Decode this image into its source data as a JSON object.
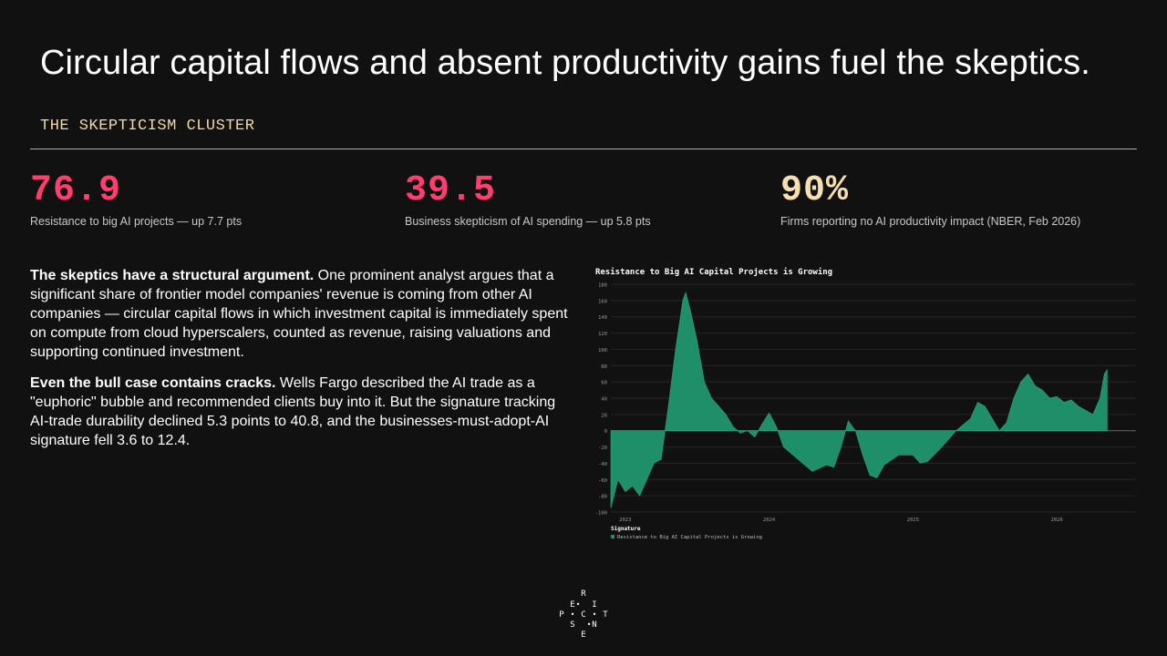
{
  "title": "Circular capital flows and absent productivity gains fuel the skeptics.",
  "section_label": "THE SKEPTICISM CLUSTER",
  "stats": [
    {
      "value": "76.9",
      "desc": "Resistance to big AI projects — up 7.7 pts",
      "color": "#ff3d6e"
    },
    {
      "value": "39.5",
      "desc": "Business skepticism of AI spending — up 5.8 pts",
      "color": "#ff3d6e"
    },
    {
      "value": "90%",
      "desc": "Firms reporting no AI productivity impact (NBER, Feb 2026)",
      "color": "#f5deb0"
    }
  ],
  "paragraphs": [
    {
      "lead": "The skeptics have a structural argument.",
      "text": " One prominent analyst argues that a significant share of frontier model companies' revenue is coming from other AI companies — circular capital flows in which investment capital is immediately spent on compute from cloud hyperscalers, counted as revenue, raising valuations and supporting continued investment."
    },
    {
      "lead": "Even the bull case contains cracks.",
      "text": " Wells Fargo described the AI trade as a \"euphoric\" bubble and recommended clients buy into it. But the signature tracking AI-trade durability declined 5.3 points to 40.8, and the businesses-must-adopt-AI signature fell 3.6 to 12.4."
    }
  ],
  "chart_data": {
    "type": "area",
    "title": "Resistance to Big AI Capital Projects is Growing",
    "xlabel": "",
    "ylabel": "",
    "x_range": [
      2022.9,
      2026.55
    ],
    "ylim": [
      -100,
      180
    ],
    "y_ticks": [
      -100,
      -80,
      -60,
      -40,
      -20,
      0,
      20,
      40,
      60,
      80,
      100,
      120,
      140,
      160,
      180
    ],
    "x_ticks": [
      {
        "value": 2023,
        "label": "2023"
      },
      {
        "value": 2024,
        "label": "2024"
      },
      {
        "value": 2025,
        "label": "2025"
      },
      {
        "value": 2026,
        "label": "2026"
      }
    ],
    "grid": true,
    "legend": {
      "title": "Signature",
      "placement": "bottom-left"
    },
    "series": [
      {
        "name": "Resistance to Big AI Capital Projects is Growing",
        "color": "#1f8f6a",
        "points": [
          [
            2022.9,
            -95
          ],
          [
            2022.95,
            -60
          ],
          [
            2023.0,
            -75
          ],
          [
            2023.05,
            -68
          ],
          [
            2023.1,
            -80
          ],
          [
            2023.15,
            -60
          ],
          [
            2023.2,
            -40
          ],
          [
            2023.25,
            -35
          ],
          [
            2023.3,
            30
          ],
          [
            2023.35,
            100
          ],
          [
            2023.4,
            160
          ],
          [
            2023.42,
            170
          ],
          [
            2023.45,
            150
          ],
          [
            2023.5,
            110
          ],
          [
            2023.55,
            60
          ],
          [
            2023.6,
            40
          ],
          [
            2023.65,
            30
          ],
          [
            2023.7,
            20
          ],
          [
            2023.75,
            5
          ],
          [
            2023.8,
            -3
          ],
          [
            2023.85,
            0
          ],
          [
            2023.9,
            -8
          ],
          [
            2023.95,
            8
          ],
          [
            2024.0,
            22
          ],
          [
            2024.05,
            5
          ],
          [
            2024.1,
            -20
          ],
          [
            2024.2,
            -35
          ],
          [
            2024.3,
            -50
          ],
          [
            2024.4,
            -42
          ],
          [
            2024.45,
            -45
          ],
          [
            2024.5,
            -20
          ],
          [
            2024.55,
            12
          ],
          [
            2024.6,
            0
          ],
          [
            2024.65,
            -30
          ],
          [
            2024.7,
            -55
          ],
          [
            2024.75,
            -58
          ],
          [
            2024.8,
            -42
          ],
          [
            2024.9,
            -30
          ],
          [
            2025.0,
            -30
          ],
          [
            2025.05,
            -40
          ],
          [
            2025.1,
            -38
          ],
          [
            2025.2,
            -20
          ],
          [
            2025.3,
            0
          ],
          [
            2025.4,
            15
          ],
          [
            2025.45,
            35
          ],
          [
            2025.5,
            30
          ],
          [
            2025.55,
            15
          ],
          [
            2025.6,
            0
          ],
          [
            2025.65,
            10
          ],
          [
            2025.7,
            40
          ],
          [
            2025.75,
            60
          ],
          [
            2025.8,
            70
          ],
          [
            2025.85,
            55
          ],
          [
            2025.9,
            50
          ],
          [
            2025.95,
            40
          ],
          [
            2026.0,
            42
          ],
          [
            2026.05,
            35
          ],
          [
            2026.1,
            38
          ],
          [
            2026.15,
            30
          ],
          [
            2026.2,
            25
          ],
          [
            2026.25,
            20
          ],
          [
            2026.3,
            40
          ],
          [
            2026.33,
            70
          ],
          [
            2026.35,
            75
          ]
        ]
      }
    ]
  },
  "logo_letters": [
    "R",
    "E",
    "I",
    "P",
    "C",
    "T",
    "S",
    "N",
    "E"
  ]
}
